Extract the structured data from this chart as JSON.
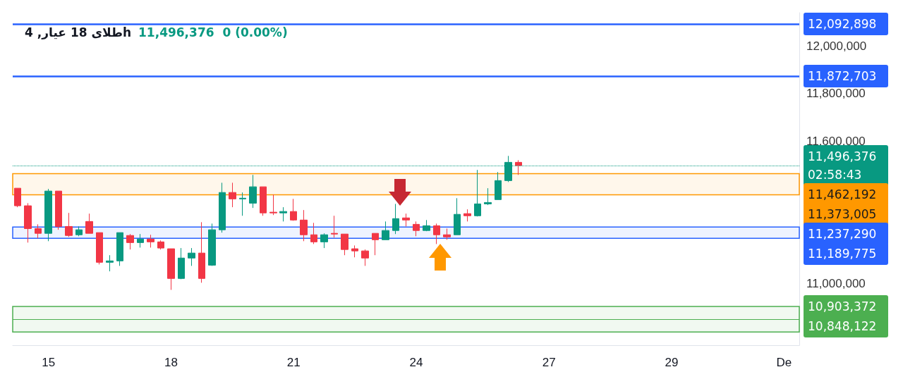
{
  "chart_data": {
    "type": "candlestick",
    "title": "طلای 18 عیار, 4h",
    "subtitle": "11,496,376  0 (0.00%)",
    "categories": [
      null,
      null,
      null,
      "15",
      null,
      null,
      null,
      null,
      null,
      null,
      null,
      null,
      null,
      null,
      null,
      "18",
      null,
      null,
      null,
      null,
      null,
      null,
      null,
      null,
      null,
      null,
      null,
      "21",
      null,
      null,
      null,
      null,
      null,
      null,
      null,
      null,
      null,
      null,
      null,
      "24",
      null,
      null,
      null,
      null,
      null,
      null,
      null,
      null,
      null,
      null,
      null,
      null,
      "27",
      null,
      null,
      null,
      null,
      null,
      null,
      null,
      null,
      null,
      null,
      null,
      "29",
      null,
      null,
      null,
      null,
      null,
      null,
      null,
      null,
      null,
      null,
      "De",
      null
    ],
    "ohlc": [
      [
        11401000,
        11401000,
        11321000,
        11327000
      ],
      [
        11327000,
        11338000,
        11172000,
        11231000
      ],
      [
        11231000,
        11249000,
        11190000,
        11211000
      ],
      [
        11211000,
        11398000,
        11178000,
        11389000
      ],
      [
        11389000,
        11389000,
        11226000,
        11240000
      ],
      [
        11240000,
        11297000,
        11196000,
        11202000
      ],
      [
        11205000,
        11240000,
        11199000,
        11226000
      ],
      [
        11261000,
        11294000,
        11211000,
        11211000
      ],
      [
        11214000,
        11214000,
        11080000,
        11089000
      ],
      [
        11089000,
        11119000,
        11051000,
        11095000
      ],
      [
        11095000,
        11214000,
        11074000,
        11214000
      ],
      [
        11202000,
        11208000,
        11143000,
        11172000
      ],
      [
        11172000,
        11208000,
        11151000,
        11187000
      ],
      [
        11187000,
        11205000,
        11151000,
        11175000
      ],
      [
        11175000,
        11181000,
        11143000,
        11149000
      ],
      [
        11146000,
        11146000,
        10973000,
        11021000
      ],
      [
        11021000,
        11149000,
        11018000,
        11107000
      ],
      [
        11107000,
        11149000,
        11074000,
        11128000
      ],
      [
        11128000,
        11258000,
        11003000,
        11021000
      ],
      [
        11077000,
        11252000,
        11074000,
        11226000
      ],
      [
        11226000,
        11424000,
        11214000,
        11383000
      ],
      [
        11383000,
        11424000,
        11321000,
        11356000
      ],
      [
        11356000,
        11383000,
        11285000,
        11359000
      ],
      [
        11338000,
        11457000,
        11318000,
        11407000
      ],
      [
        11407000,
        11407000,
        11285000,
        11297000
      ],
      [
        11300000,
        11374000,
        11288000,
        11297000
      ],
      [
        11297000,
        11321000,
        11261000,
        11303000
      ],
      [
        11303000,
        11356000,
        11264000,
        11267000
      ],
      [
        11267000,
        11309000,
        11178000,
        11205000
      ],
      [
        11205000,
        11255000,
        11166000,
        11175000
      ],
      [
        11175000,
        11211000,
        11149000,
        11205000
      ],
      [
        11211000,
        11285000,
        11193000,
        11208000
      ],
      [
        11208000,
        11208000,
        11119000,
        11143000
      ],
      [
        11146000,
        11160000,
        11110000,
        11137000
      ],
      [
        11137000,
        11143000,
        11074000,
        11107000
      ],
      [
        11211000,
        11211000,
        11119000,
        11184000
      ],
      [
        11184000,
        11261000,
        11184000,
        11223000
      ],
      [
        11223000,
        11335000,
        11208000,
        11273000
      ],
      [
        11276000,
        11294000,
        11240000,
        11267000
      ],
      [
        11249000,
        11261000,
        11199000,
        11223000
      ],
      [
        11223000,
        11267000,
        11220000,
        11243000
      ],
      [
        11243000,
        11252000,
        11166000,
        11205000
      ],
      [
        11205000,
        11231000,
        11184000,
        11196000
      ],
      [
        11205000,
        11359000,
        11205000,
        11291000
      ],
      [
        11294000,
        11312000,
        11261000,
        11285000
      ],
      [
        11285000,
        11478000,
        11282000,
        11335000
      ],
      [
        11335000,
        11401000,
        11330000,
        11341000
      ],
      [
        11353000,
        11469000,
        11353000,
        11433000
      ],
      [
        11433000,
        11537000,
        11427000,
        11510000
      ],
      [
        11510000,
        11519000,
        11457000,
        11496376
      ],
      null,
      null,
      null,
      null,
      null,
      null,
      null,
      null,
      null,
      null,
      null,
      null,
      null,
      null,
      null,
      null,
      null,
      null,
      null,
      null,
      null,
      null,
      null,
      null,
      null,
      null,
      null
    ],
    "colors": [
      "#f23645",
      "#f23645",
      "#f23645",
      "#089981",
      "#f23645",
      "#f23645",
      "#089981",
      "#f23645",
      "#f23645",
      "#089981",
      "#089981",
      "#f23645",
      "#089981",
      "#f23645",
      "#f23645",
      "#f23645",
      "#089981",
      "#089981",
      "#f23645",
      "#089981",
      "#089981",
      "#f23645",
      "#089981",
      "#089981",
      "#f23645",
      "#f23645",
      "#089981",
      "#f23645",
      "#f23645",
      "#f23645",
      "#089981",
      "#f23645",
      "#f23645",
      "#f23645",
      "#f23645",
      "#f23645",
      "#089981",
      "#089981",
      "#f23645",
      "#f23645",
      "#089981",
      "#f23645",
      "#f23645",
      "#089981",
      "#f23645",
      "#089981",
      "#089981",
      "#089981",
      "#089981",
      "#f23645",
      null,
      null,
      null,
      null,
      null,
      null,
      null,
      null,
      null,
      null,
      null,
      null,
      null,
      null,
      null,
      null,
      null,
      null,
      null,
      null,
      null,
      null,
      null,
      null,
      null,
      null,
      null
    ],
    "ylim": [
      10740000,
      12140000
    ],
    "yticks": [
      {
        "value": 11000000,
        "label": "11,000,000"
      },
      {
        "value": 11600000,
        "label": "11,600,000"
      },
      {
        "value": 11800000,
        "label": "11,800,000"
      },
      {
        "value": 12000000,
        "label": "12,000,000"
      }
    ],
    "ref_lines": [
      {
        "axis": "y",
        "value": 12092898,
        "label": "12,092,898",
        "color": "#2962ff",
        "line_style": "solid"
      },
      {
        "axis": "y",
        "value": 11872703,
        "label": "11,872,703",
        "color": "#2962ff",
        "line_style": "solid"
      },
      {
        "axis": "y",
        "value": 11496376,
        "label": "11,496,376\n02:58:43",
        "color": "#089981",
        "line_style": "dotted"
      },
      {
        "axis": "y",
        "value": 10848122,
        "label": "10,848,122",
        "color": "#4caf50",
        "line_style": "solid"
      }
    ],
    "bands": [
      {
        "axis": "y",
        "from": 11462192,
        "to": 11373005,
        "label": "11,462,192\n11,373,005",
        "color": "#ff9800"
      },
      {
        "axis": "y",
        "from": 11237290,
        "to": 11189775,
        "label": "11,237,290\n11,189,775",
        "color": "#2962ff"
      },
      {
        "axis": "y",
        "from": 10903372,
        "to": 10795868,
        "label": "10,903,372",
        "color": "#4caf50"
      }
    ],
    "grid": false
  }
}
